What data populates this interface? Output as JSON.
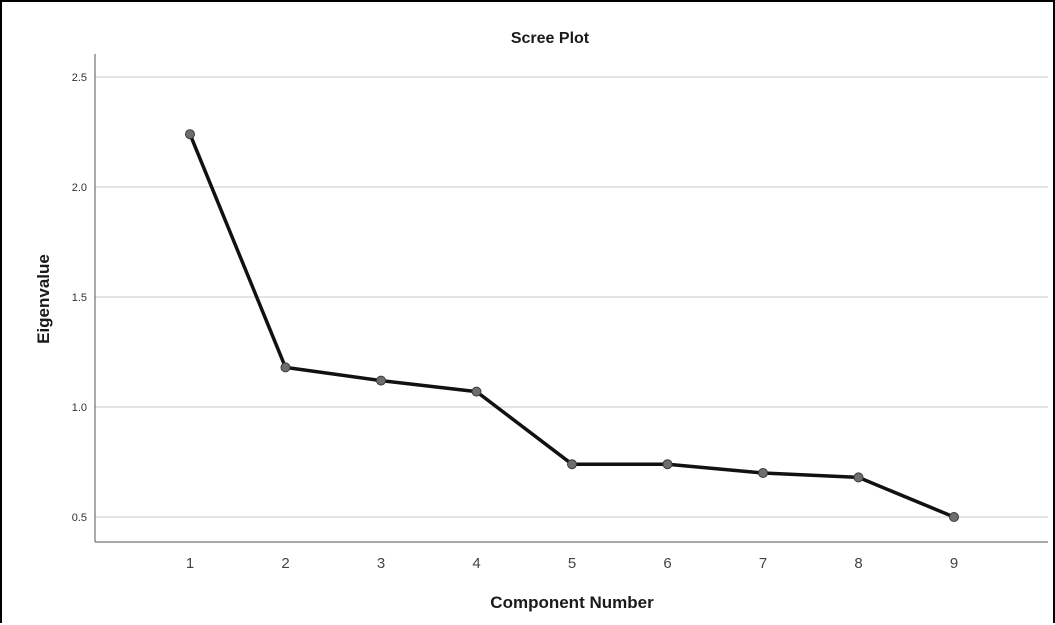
{
  "chart_data": {
    "type": "line",
    "title": "Scree Plot",
    "xlabel": "Component Number",
    "ylabel": "Eigenvalue",
    "x": [
      1,
      2,
      3,
      4,
      5,
      6,
      7,
      8,
      9
    ],
    "categories": [
      "1",
      "2",
      "3",
      "4",
      "5",
      "6",
      "7",
      "8",
      "9"
    ],
    "series": [
      {
        "values": [
          2.24,
          1.18,
          1.12,
          1.07,
          0.74,
          0.74,
          0.7,
          0.68,
          0.5
        ]
      }
    ],
    "ylim": [
      0.4,
      2.6
    ],
    "yticks": [
      0.5,
      1.0,
      1.5,
      2.0,
      2.5
    ],
    "ytick_labels": [
      "0.5",
      "1.0",
      "1.5",
      "2.0",
      "2.5"
    ],
    "grid": "horizontal",
    "colors": {
      "line": "#111111",
      "marker": "#6e6e6e",
      "grid": "#c8c8c8",
      "axis": "#555555"
    }
  }
}
